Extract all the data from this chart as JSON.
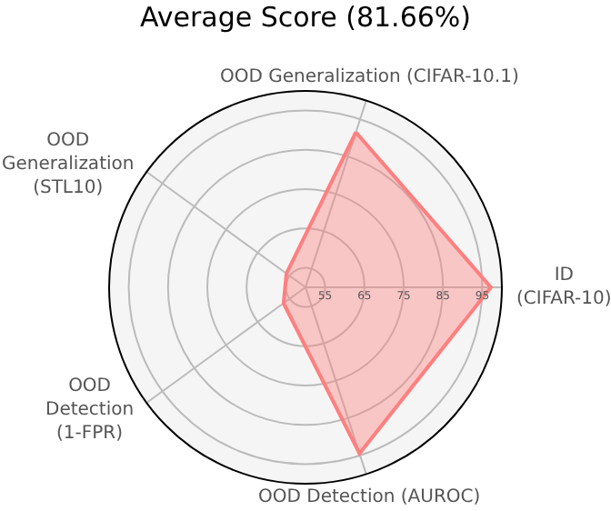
{
  "chart_data": {
    "type": "radar",
    "title": "Average Score (81.66%)",
    "categories": [
      "OOD Generalization (CIFAR-10.1)",
      "ID\n(CIFAR-10)",
      "OOD Detection (AUROC)",
      "OOD\nDetection\n(1-FPR)",
      "OOD\nGeneralization\n(STL10)"
    ],
    "series": [
      {
        "color": "#ff7f7f",
        "values": [
          91.5,
          97.2,
          94.5,
          56.9,
          56.0
        ]
      }
    ],
    "ylim": [
      50,
      100
    ],
    "yticks": [
      55,
      65,
      75,
      85,
      95
    ],
    "grid": true,
    "marker": "none",
    "line_style": "solid"
  }
}
